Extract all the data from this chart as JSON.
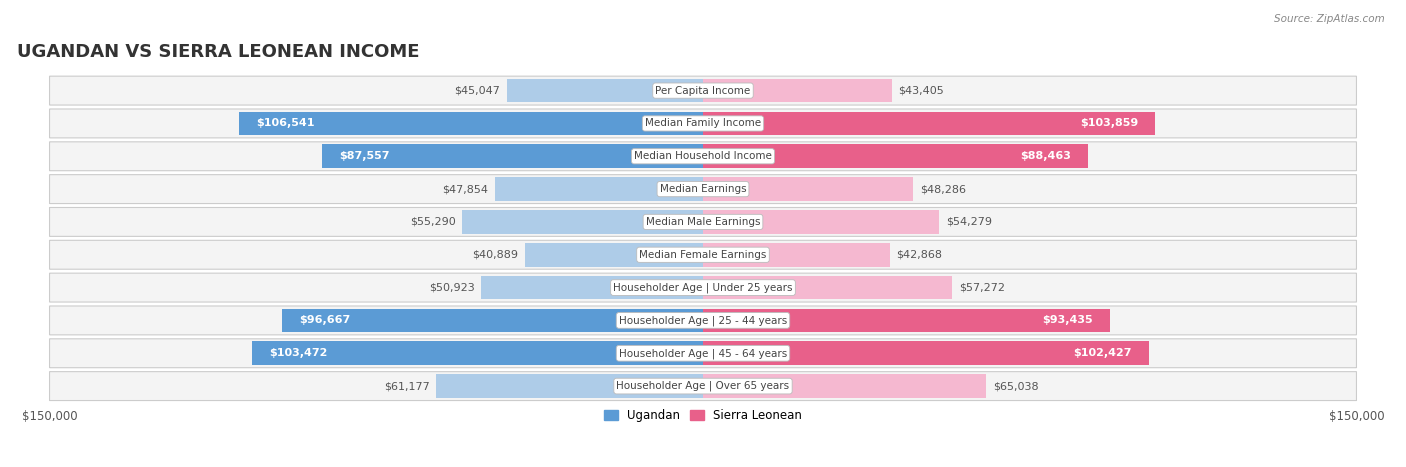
{
  "title": "UGANDAN VS SIERRA LEONEAN INCOME",
  "source": "Source: ZipAtlas.com",
  "categories": [
    "Per Capita Income",
    "Median Family Income",
    "Median Household Income",
    "Median Earnings",
    "Median Male Earnings",
    "Median Female Earnings",
    "Householder Age | Under 25 years",
    "Householder Age | 25 - 44 years",
    "Householder Age | 45 - 64 years",
    "Householder Age | Over 65 years"
  ],
  "ugandan_values": [
    45047,
    106541,
    87557,
    47854,
    55290,
    40889,
    50923,
    96667,
    103472,
    61177
  ],
  "sierra_leonean_values": [
    43405,
    103859,
    88463,
    48286,
    54279,
    42868,
    57272,
    93435,
    102427,
    65038
  ],
  "ugandan_labels": [
    "$45,047",
    "$106,541",
    "$87,557",
    "$47,854",
    "$55,290",
    "$40,889",
    "$50,923",
    "$96,667",
    "$103,472",
    "$61,177"
  ],
  "sierra_leonean_labels": [
    "$43,405",
    "$103,859",
    "$88,463",
    "$48,286",
    "$54,279",
    "$42,868",
    "$57,272",
    "$93,435",
    "$102,427",
    "$65,038"
  ],
  "max_value": 150000,
  "ugandan_bar_color_low": "#aecce8",
  "ugandan_bar_color_high": "#5b9bd5",
  "sierra_leonean_bar_color_low": "#f5b8d0",
  "sierra_leonean_bar_color_high": "#e8608a",
  "label_threshold": 75000,
  "title_fontsize": 13,
  "label_fontsize": 8.0,
  "category_fontsize": 7.5
}
